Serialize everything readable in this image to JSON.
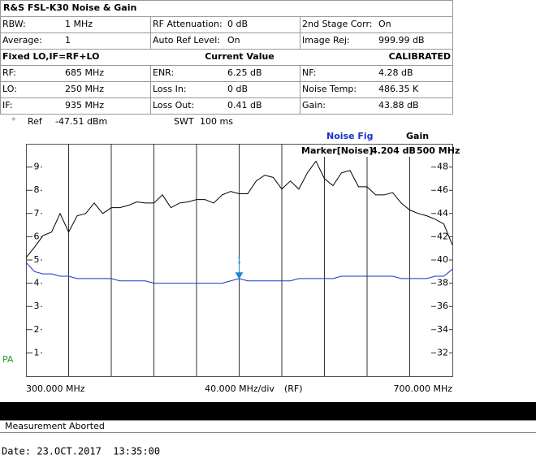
{
  "header": {
    "title": "R&S FSL-K30 Noise & Gain",
    "rows": [
      [
        "RBW:",
        "1 MHz",
        "RF Attenuation:",
        "0 dB",
        "2nd Stage Corr:",
        "On"
      ],
      [
        "Average:",
        "1",
        "Auto Ref Level:",
        "On",
        "Image Rej:",
        "999.99 dB"
      ]
    ],
    "section": [
      "Fixed LO,IF=RF+LO",
      "Current Value",
      "CALIBRATED"
    ],
    "results": [
      [
        "RF:",
        "685 MHz",
        "ENR:",
        "6.25 dB",
        "NF:",
        "4.28 dB"
      ],
      [
        "LO:",
        "250 MHz",
        "Loss In:",
        "0 dB",
        "Noise Temp:",
        "486.35 K"
      ],
      [
        "IF:",
        "935 MHz",
        "Loss Out:",
        "0.41 dB",
        "Gain:",
        "43.88 dB"
      ]
    ]
  },
  "info": {
    "ref_marker": "*",
    "ref_label": "Ref",
    "ref_value": "-47.51 dBm",
    "swt_label": "SWT",
    "swt_value": "100 ms",
    "pa": "PA"
  },
  "chart_data": {
    "type": "line",
    "x": [
      300,
      308,
      316,
      324,
      332,
      340,
      348,
      356,
      364,
      372,
      380,
      388,
      396,
      404,
      412,
      420,
      428,
      436,
      444,
      452,
      460,
      468,
      476,
      484,
      492,
      500,
      508,
      516,
      524,
      532,
      540,
      548,
      556,
      564,
      572,
      580,
      588,
      596,
      604,
      612,
      620,
      628,
      636,
      644,
      652,
      660,
      668,
      676,
      684,
      692,
      700
    ],
    "xlim": [
      300,
      700
    ],
    "xticks": [
      {
        "value": 300,
        "label": "300.000 MHz"
      },
      {
        "value": 700,
        "label": "700.000 MHz"
      }
    ],
    "x_div": {
      "value": 40,
      "label": "40.000 MHz/div"
    },
    "x_unit_label": "(RF)",
    "ylim": [
      0,
      10
    ],
    "yticks": [
      1,
      2,
      3,
      4,
      5,
      6,
      7,
      8,
      9
    ],
    "y2lim": [
      30,
      50
    ],
    "y2ticks": [
      32,
      34,
      36,
      38,
      40,
      42,
      44,
      46,
      48
    ],
    "grid": true,
    "series": [
      {
        "name": "Noise Fig",
        "color": "#1a33c8",
        "axis": "y",
        "values": [
          4.9,
          4.5,
          4.4,
          4.4,
          4.3,
          4.3,
          4.2,
          4.2,
          4.2,
          4.2,
          4.2,
          4.1,
          4.1,
          4.1,
          4.1,
          4.0,
          4.0,
          4.0,
          4.0,
          4.0,
          4.0,
          4.0,
          4.0,
          4.0,
          4.1,
          4.2,
          4.1,
          4.1,
          4.1,
          4.1,
          4.1,
          4.1,
          4.2,
          4.2,
          4.2,
          4.2,
          4.2,
          4.3,
          4.3,
          4.3,
          4.3,
          4.3,
          4.3,
          4.3,
          4.2,
          4.2,
          4.2,
          4.2,
          4.3,
          4.3,
          4.6
        ]
      },
      {
        "name": "Gain",
        "color": "#000000",
        "axis": "y2",
        "values": [
          40.2,
          41.1,
          42.1,
          42.4,
          44.0,
          42.4,
          43.8,
          44.0,
          44.9,
          44.0,
          44.5,
          44.5,
          44.7,
          45.0,
          44.9,
          44.9,
          45.6,
          44.5,
          44.9,
          45.0,
          45.2,
          45.2,
          44.9,
          45.6,
          45.9,
          45.7,
          45.7,
          46.8,
          47.3,
          47.1,
          46.1,
          46.8,
          46.1,
          47.5,
          48.5,
          47.0,
          46.4,
          47.5,
          47.7,
          46.3,
          46.3,
          45.6,
          45.6,
          45.8,
          44.9,
          44.3,
          44.0,
          43.8,
          43.5,
          43.1,
          41.3
        ]
      }
    ],
    "marker": {
      "label": "Marker[Noise]",
      "number": "1",
      "y": {
        "value": 4.204,
        "label": "4.204 dB"
      },
      "x": {
        "value": 500,
        "label": "500 MHz"
      }
    }
  },
  "status": "Measurement Aborted",
  "date": "Date: 23.OCT.2017  13:35:00"
}
